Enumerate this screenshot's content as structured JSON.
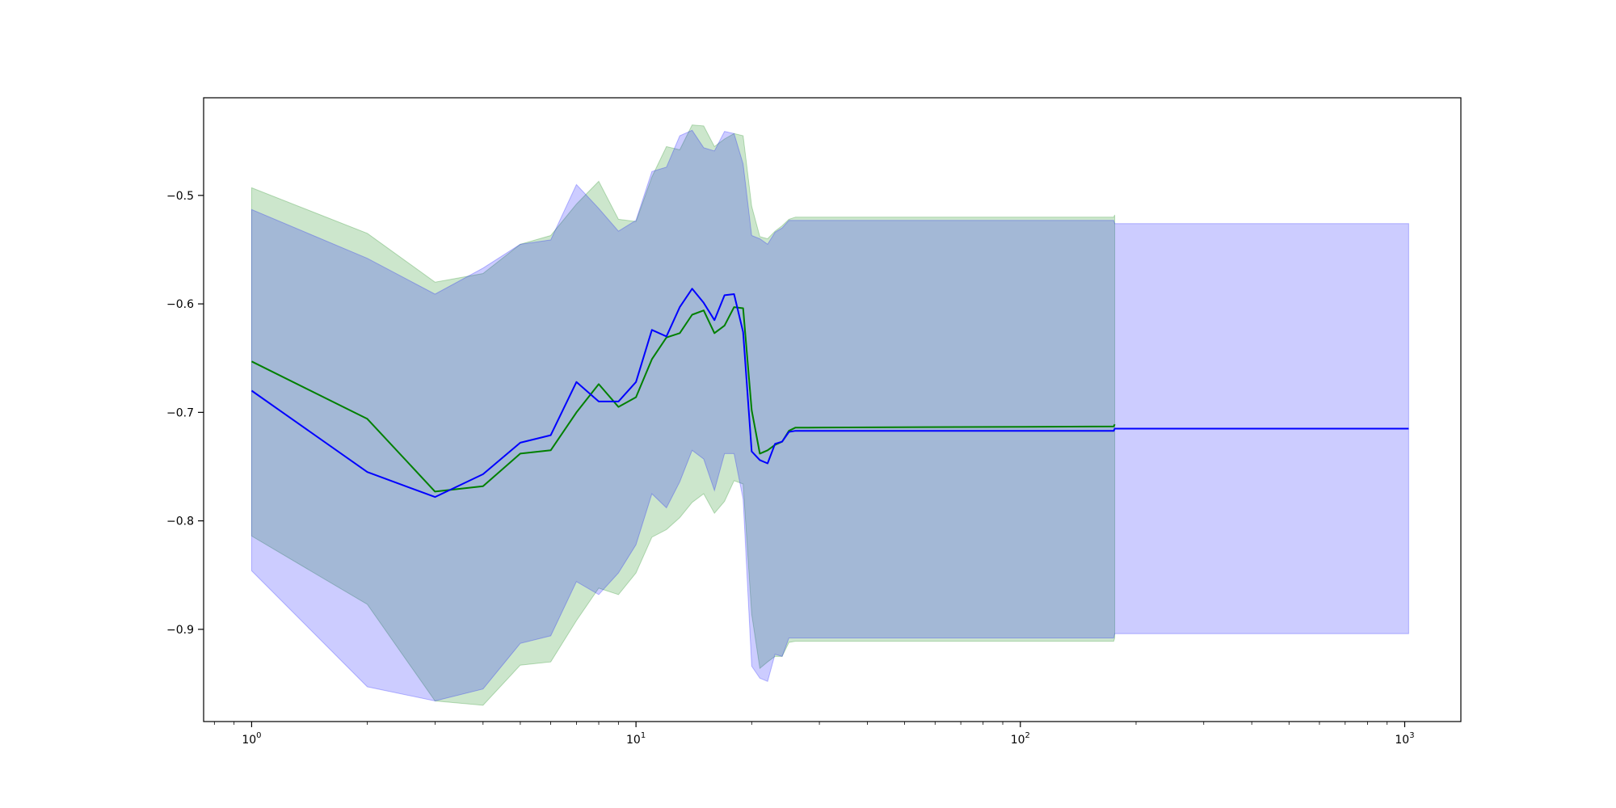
{
  "chart_data": {
    "type": "line",
    "title": "",
    "xlabel": "",
    "ylabel": "",
    "x_scale": "log",
    "xlim": [
      0.75,
      1400
    ],
    "ylim": [
      -0.985,
      -0.41
    ],
    "grid": false,
    "legend": "none",
    "x_ticks": [
      {
        "value": 1,
        "base": "10",
        "exp": "0"
      },
      {
        "value": 10,
        "base": "10",
        "exp": "1"
      },
      {
        "value": 100,
        "base": "10",
        "exp": "2"
      },
      {
        "value": 1000,
        "base": "10",
        "exp": "3"
      }
    ],
    "y_ticks": [
      {
        "value": -0.5,
        "label": "−0.5"
      },
      {
        "value": -0.6,
        "label": "−0.6"
      },
      {
        "value": -0.7,
        "label": "−0.7"
      },
      {
        "value": -0.8,
        "label": "−0.8"
      },
      {
        "value": -0.9,
        "label": "−0.9"
      }
    ],
    "series": [
      {
        "color": "#008000",
        "band_fill": "#008000",
        "band_opacity": 0.2,
        "x": [
          1,
          2,
          3,
          4,
          5,
          6,
          7,
          8,
          9,
          10,
          11,
          12,
          13,
          14,
          15,
          16,
          17,
          18,
          19,
          20,
          21,
          22,
          23,
          24,
          25,
          26,
          27,
          28,
          175,
          176
        ],
        "y": [
          -0.653,
          -0.706,
          -0.773,
          -0.768,
          -0.738,
          -0.735,
          -0.7,
          -0.674,
          -0.695,
          -0.686,
          -0.651,
          -0.631,
          -0.627,
          -0.61,
          -0.606,
          -0.627,
          -0.62,
          -0.603,
          -0.604,
          -0.698,
          -0.738,
          -0.735,
          -0.73,
          -0.727,
          -0.717,
          -0.714,
          -0.714,
          -0.714,
          -0.713,
          -0.711
        ],
        "upper": [
          -0.493,
          -0.535,
          -0.58,
          -0.572,
          -0.545,
          -0.537,
          -0.508,
          -0.487,
          -0.522,
          -0.524,
          -0.483,
          -0.455,
          -0.458,
          -0.435,
          -0.436,
          -0.455,
          -0.448,
          -0.443,
          -0.445,
          -0.51,
          -0.538,
          -0.54,
          -0.533,
          -0.528,
          -0.522,
          -0.52,
          -0.52,
          -0.52,
          -0.52,
          -0.518
        ],
        "lower": [
          -0.814,
          -0.877,
          -0.966,
          -0.97,
          -0.933,
          -0.93,
          -0.892,
          -0.862,
          -0.868,
          -0.848,
          -0.815,
          -0.808,
          -0.797,
          -0.783,
          -0.775,
          -0.793,
          -0.782,
          -0.763,
          -0.766,
          -0.886,
          -0.936,
          -0.93,
          -0.925,
          -0.925,
          -0.912,
          -0.911,
          -0.911,
          -0.911,
          -0.911,
          -0.908
        ]
      },
      {
        "color": "#0000ff",
        "band_fill": "#0000ff",
        "band_opacity": 0.2,
        "x": [
          1,
          2,
          3,
          4,
          5,
          6,
          7,
          8,
          9,
          10,
          11,
          12,
          13,
          14,
          15,
          16,
          17,
          18,
          19,
          20,
          21,
          22,
          23,
          24,
          25,
          26,
          27,
          28,
          175,
          176,
          1024
        ],
        "y": [
          -0.68,
          -0.755,
          -0.778,
          -0.757,
          -0.728,
          -0.721,
          -0.672,
          -0.69,
          -0.69,
          -0.672,
          -0.624,
          -0.63,
          -0.603,
          -0.586,
          -0.599,
          -0.615,
          -0.592,
          -0.591,
          -0.626,
          -0.736,
          -0.744,
          -0.747,
          -0.729,
          -0.727,
          -0.718,
          -0.717,
          -0.717,
          -0.717,
          -0.717,
          -0.715,
          -0.715
        ],
        "upper": [
          -0.513,
          -0.558,
          -0.591,
          -0.567,
          -0.545,
          -0.541,
          -0.49,
          -0.512,
          -0.533,
          -0.523,
          -0.478,
          -0.474,
          -0.445,
          -0.44,
          -0.456,
          -0.459,
          -0.441,
          -0.443,
          -0.471,
          -0.537,
          -0.54,
          -0.545,
          -0.534,
          -0.53,
          -0.523,
          -0.523,
          -0.523,
          -0.523,
          -0.523,
          -0.526,
          -0.526
        ],
        "lower": [
          -0.846,
          -0.953,
          -0.966,
          -0.955,
          -0.913,
          -0.906,
          -0.856,
          -0.868,
          -0.848,
          -0.822,
          -0.775,
          -0.788,
          -0.764,
          -0.735,
          -0.743,
          -0.772,
          -0.738,
          -0.738,
          -0.78,
          -0.934,
          -0.945,
          -0.948,
          -0.923,
          -0.925,
          -0.908,
          -0.908,
          -0.908,
          -0.908,
          -0.908,
          -0.904,
          -0.904
        ]
      }
    ]
  }
}
